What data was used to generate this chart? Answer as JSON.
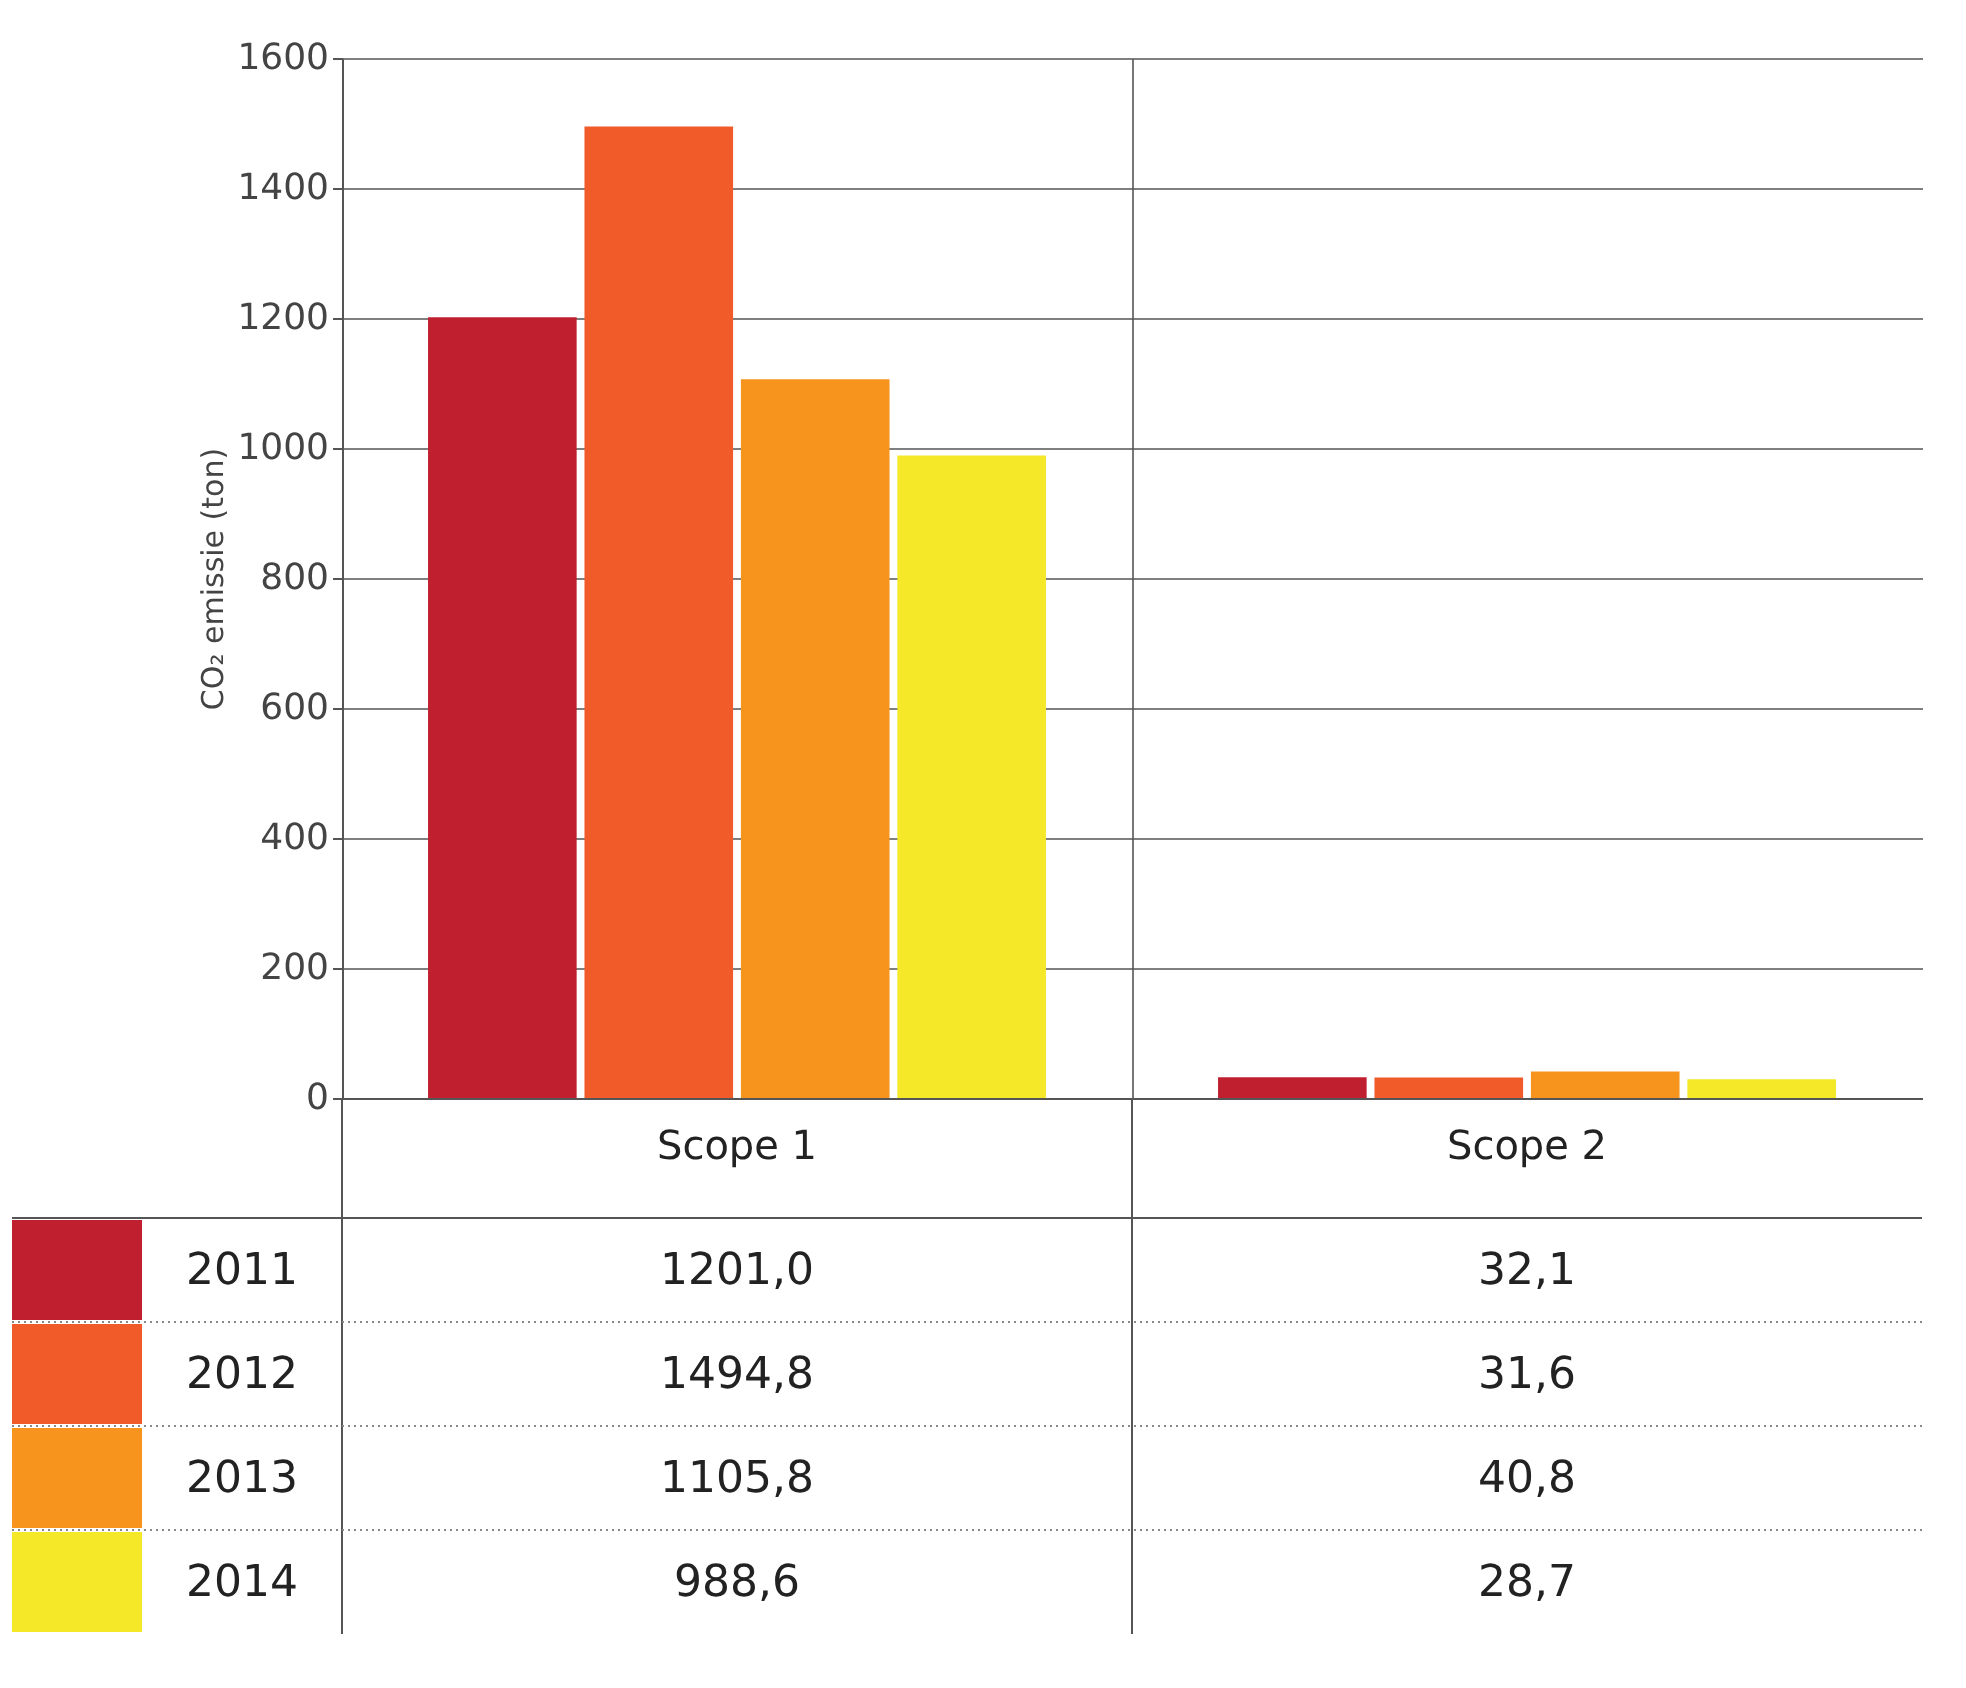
{
  "chart_data": {
    "type": "bar",
    "ylabel": "CO₂ emissie (ton)",
    "categories": [
      "Scope 1",
      "Scope 2"
    ],
    "series": [
      {
        "name": "2011",
        "color": "#c01f2f",
        "values": [
          1201.0,
          32.1
        ],
        "value_labels": [
          "1201,0",
          "32,1"
        ]
      },
      {
        "name": "2012",
        "color": "#f15a29",
        "values": [
          1494.8,
          31.6
        ],
        "value_labels": [
          "1494,8",
          "31,6"
        ]
      },
      {
        "name": "2013",
        "color": "#f7941d",
        "values": [
          1105.8,
          40.8
        ],
        "value_labels": [
          "1105,8",
          "40,8"
        ]
      },
      {
        "name": "2014",
        "color": "#f4e829",
        "values": [
          988.6,
          28.7
        ],
        "value_labels": [
          "988,6",
          "28,7"
        ]
      }
    ],
    "ylim": [
      0,
      1600
    ],
    "yticks": [
      0,
      200,
      400,
      600,
      800,
      1000,
      1200,
      1400,
      1600
    ],
    "grid": true,
    "legend": "bottom left"
  }
}
